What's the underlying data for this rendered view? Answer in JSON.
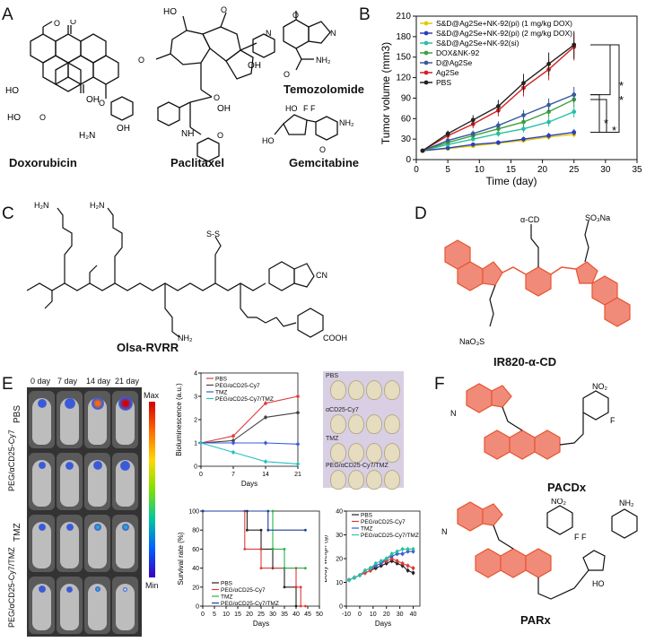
{
  "panels": {
    "A": {
      "label": "A",
      "compounds": [
        "Doxorubicin",
        "Paclitaxel",
        "Temozolomide",
        "Gemcitabine"
      ]
    },
    "B": {
      "label": "B"
    },
    "C": {
      "label": "C",
      "compound": "Olsa-RVRR"
    },
    "D": {
      "label": "D",
      "compound": "IR820-α-CD"
    },
    "E": {
      "label": "E"
    },
    "F": {
      "label": "F",
      "compounds": [
        "PACDx",
        "PARx"
      ]
    }
  },
  "chart_b": {
    "chart_data": {
      "type": "line",
      "xlabel": "Time (day)",
      "ylabel": "Tumor volume (mm3)",
      "xlim": [
        0,
        35
      ],
      "ylim": [
        0,
        210
      ],
      "xticks": [
        0,
        5,
        10,
        15,
        20,
        25,
        30,
        35
      ],
      "yticks": [
        0,
        30,
        60,
        90,
        120,
        150,
        180,
        210
      ],
      "x": [
        1,
        5,
        9,
        13,
        17,
        21,
        25
      ],
      "legend_position": "top-left",
      "series": [
        {
          "name": "S&D@Ag2Se+NK-92(pi) (1 mg/kg DOX)",
          "color": "#e6c800",
          "values": [
            13,
            16,
            20,
            24,
            28,
            33,
            37
          ]
        },
        {
          "name": "S&D@Ag2Se+NK-92(pi) (2 mg/kg DOX)",
          "color": "#2a3fbf",
          "values": [
            13,
            17,
            22,
            25,
            30,
            35,
            40
          ]
        },
        {
          "name": "S&D@Ag2Se+NK-92(si)",
          "color": "#2bbfa5",
          "values": [
            13,
            22,
            30,
            38,
            45,
            55,
            70
          ]
        },
        {
          "name": "DOX&NK-92",
          "color": "#3aa23a",
          "values": [
            13,
            25,
            35,
            45,
            55,
            70,
            88
          ]
        },
        {
          "name": "D@Ag2Se",
          "color": "#3a5a9a",
          "values": [
            13,
            28,
            38,
            50,
            65,
            80,
            95
          ]
        },
        {
          "name": "Ag2Se",
          "color": "#d42020",
          "values": [
            13,
            35,
            52,
            72,
            105,
            132,
            165
          ]
        },
        {
          "name": "PBS",
          "color": "#222222",
          "values": [
            13,
            38,
            58,
            78,
            112,
            140,
            168
          ]
        }
      ],
      "significance": [
        "*",
        "*",
        "*",
        "*"
      ]
    }
  },
  "panel_e": {
    "image_days": [
      "0 day",
      "7 day",
      "14 day",
      "21 day"
    ],
    "image_groups": [
      "PBS",
      "PEG/αCD25-Cy7",
      "TMZ",
      "PEG/αCD25-Cy7/TMZ"
    ],
    "colorbar": {
      "max": "Max",
      "min": "Min"
    },
    "organ_groups": [
      "PBS",
      "αCD25-Cy7",
      "TMZ",
      "PEG/αCD25-Cy7/TMZ"
    ],
    "biolum_chart": {
      "chart_data": {
        "type": "line",
        "xlabel": "Days",
        "ylabel": "Bioluminescence (a.u.)",
        "x": [
          0,
          7,
          14,
          21
        ],
        "xticks": [
          0,
          7,
          14,
          21
        ],
        "yticks": [
          0,
          1,
          2,
          3,
          4
        ],
        "ylim": [
          0,
          4
        ],
        "series": [
          {
            "name": "PBS",
            "color": "#e03a3a",
            "values": [
              1.0,
              1.3,
              2.7,
              3.0
            ]
          },
          {
            "name": "PEG/αCD25-Cy7",
            "color": "#444444",
            "values": [
              1.0,
              1.1,
              2.1,
              2.3
            ]
          },
          {
            "name": "TMZ",
            "color": "#3a5ad8",
            "values": [
              1.0,
              1.0,
              1.0,
              0.95
            ]
          },
          {
            "name": "PEG/αCD25-Cy7/TMZ",
            "color": "#2ac0c0",
            "values": [
              1.0,
              0.6,
              0.2,
              0.1
            ]
          }
        ]
      }
    },
    "survival_chart": {
      "chart_data": {
        "type": "line",
        "xlabel": "Days",
        "ylabel": "Survival rate (%)",
        "xticks": [
          0,
          5,
          10,
          15,
          20,
          25,
          30,
          35,
          40,
          45,
          50
        ],
        "yticks": [
          0,
          20,
          40,
          60,
          80,
          100
        ],
        "xlim": [
          0,
          50
        ],
        "ylim": [
          0,
          100
        ],
        "series": [
          {
            "name": "PBS",
            "color": "#222222",
            "steps": [
              [
                0,
                100
              ],
              [
                19,
                100
              ],
              [
                19,
                80
              ],
              [
                25,
                80
              ],
              [
                25,
                60
              ],
              [
                30,
                60
              ],
              [
                30,
                40
              ],
              [
                35,
                40
              ],
              [
                35,
                20
              ],
              [
                40,
                20
              ],
              [
                40,
                0
              ]
            ]
          },
          {
            "name": "PEG/αCD25-Cy7",
            "color": "#e03a3a",
            "steps": [
              [
                0,
                100
              ],
              [
                18,
                100
              ],
              [
                18,
                60
              ],
              [
                25,
                60
              ],
              [
                25,
                40
              ],
              [
                40,
                40
              ],
              [
                40,
                20
              ],
              [
                42,
                20
              ],
              [
                42,
                0
              ],
              [
                44,
                0
              ]
            ]
          },
          {
            "name": "TMZ",
            "color": "#2ab04a",
            "steps": [
              [
                0,
                100
              ],
              [
                30,
                100
              ],
              [
                30,
                60
              ],
              [
                35,
                60
              ],
              [
                35,
                40
              ],
              [
                44,
                40
              ]
            ]
          },
          {
            "name": "PEG/αCD25-Cy7/TMZ",
            "color": "#1a3fa0",
            "steps": [
              [
                0,
                100
              ],
              [
                28,
                100
              ],
              [
                28,
                80
              ],
              [
                44,
                80
              ]
            ]
          }
        ]
      }
    },
    "weight_chart": {
      "chart_data": {
        "type": "line",
        "xlabel": "Days",
        "ylabel": "Body weigh (g)",
        "xticks": [
          -10,
          0,
          10,
          20,
          30,
          40
        ],
        "yticks": [
          0,
          10,
          20,
          30,
          40
        ],
        "xlim": [
          -10,
          45
        ],
        "ylim": [
          0,
          40
        ],
        "x": [
          -8,
          -4,
          0,
          4,
          8,
          12,
          16,
          20,
          24,
          28,
          32,
          36,
          40
        ],
        "series": [
          {
            "name": "PBS",
            "color": "#222222",
            "values": [
              11,
              12,
              13,
              14,
              15,
              16,
              17,
              18,
              19,
              18,
              17,
              15,
              14
            ]
          },
          {
            "name": "PEG/αCD25-Cy7",
            "color": "#e03a3a",
            "values": [
              11,
              12,
              13,
              14,
              15,
              17,
              18,
              19,
              20,
              19,
              18,
              17,
              16
            ]
          },
          {
            "name": "TMZ",
            "color": "#3a5ad8",
            "values": [
              11,
              12,
              13,
              15,
              16,
              17,
              18,
              20,
              21,
              22,
              22,
              23,
              23
            ]
          },
          {
            "name": "PEG/αCD25-Cy7/TMZ",
            "color": "#2ac0a0",
            "values": [
              11,
              12,
              13,
              15,
              16,
              18,
              19,
              20,
              22,
              23,
              24,
              24,
              24
            ]
          }
        ]
      }
    }
  },
  "colors": {
    "highlight": "#f08b7a",
    "dye": "#e8542f"
  }
}
